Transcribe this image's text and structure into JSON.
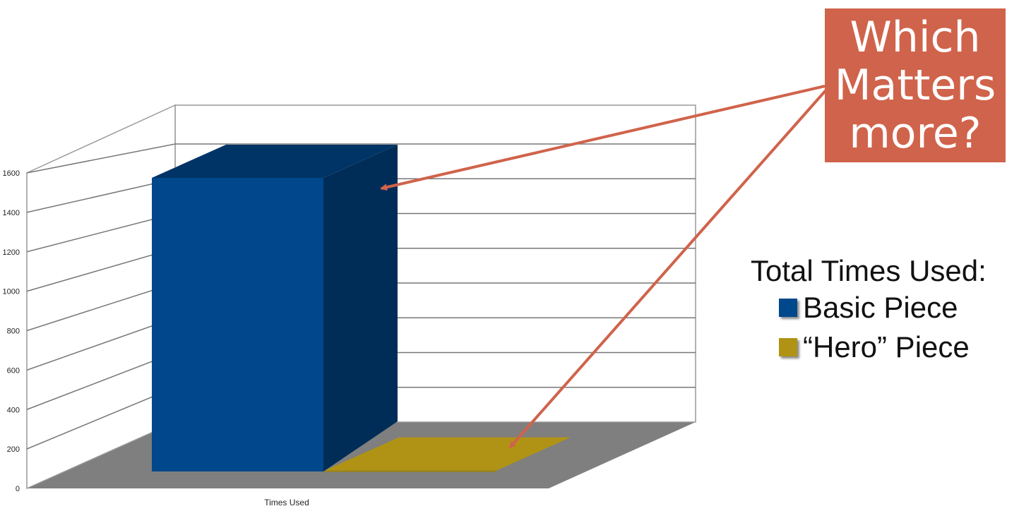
{
  "chart_data": {
    "type": "bar",
    "xlabel": "Times Used",
    "categories": [
      "Times Used"
    ],
    "y_ticks": [
      "0",
      "200",
      "400",
      "600",
      "800",
      "1000",
      "1200",
      "1400",
      "1600"
    ],
    "ylim": [
      0,
      1600
    ],
    "grid": true,
    "legend_placement": "right",
    "legend_title": "Total Times Used:",
    "series": [
      {
        "name": "Basic Piece",
        "values": [
          1490
        ],
        "color": "#00478c"
      },
      {
        "name": "“Hero” Piece",
        "values": [
          5
        ],
        "color": "#b09314"
      }
    ]
  },
  "callout": {
    "text": "Which Matters more?",
    "color": "#d0634b"
  },
  "colors": {
    "floor": "#7f7f7f",
    "wall_border": "#999999",
    "arrow": "#d0634b"
  }
}
